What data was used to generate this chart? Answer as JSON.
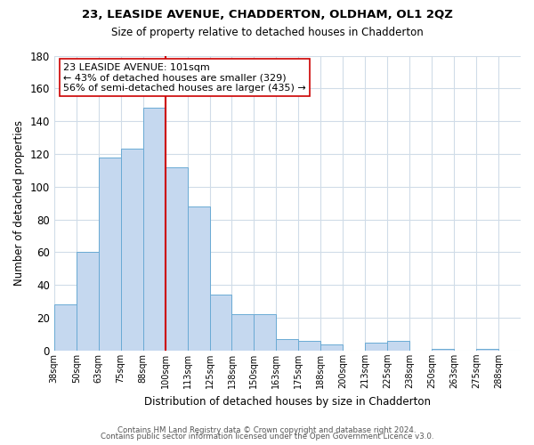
{
  "title1": "23, LEASIDE AVENUE, CHADDERTON, OLDHAM, OL1 2QZ",
  "title2": "Size of property relative to detached houses in Chadderton",
  "xlabel": "Distribution of detached houses by size in Chadderton",
  "ylabel": "Number of detached properties",
  "bar_labels": [
    "38sqm",
    "50sqm",
    "63sqm",
    "75sqm",
    "88sqm",
    "100sqm",
    "113sqm",
    "125sqm",
    "138sqm",
    "150sqm",
    "163sqm",
    "175sqm",
    "188sqm",
    "200sqm",
    "213sqm",
    "225sqm",
    "238sqm",
    "250sqm",
    "263sqm",
    "275sqm",
    "288sqm"
  ],
  "bar_values": [
    28,
    60,
    118,
    123,
    148,
    112,
    88,
    34,
    22,
    22,
    7,
    6,
    4,
    0,
    5,
    6,
    0,
    1,
    0,
    1
  ],
  "bar_color": "#c5d8ef",
  "bar_edge_color": "#6aaad4",
  "vline_color": "#cc0000",
  "ylim": [
    0,
    180
  ],
  "yticks": [
    0,
    20,
    40,
    60,
    80,
    100,
    120,
    140,
    160,
    180
  ],
  "annotation_title": "23 LEASIDE AVENUE: 101sqm",
  "annotation_line1": "← 43% of detached houses are smaller (329)",
  "annotation_line2": "56% of semi-detached houses are larger (435) →",
  "annotation_box_color": "#ffffff",
  "annotation_box_edge": "#cc0000",
  "footer1": "Contains HM Land Registry data © Crown copyright and database right 2024.",
  "footer2": "Contains public sector information licensed under the Open Government Licence v3.0.",
  "background_color": "#ffffff",
  "grid_color": "#d0dce8"
}
